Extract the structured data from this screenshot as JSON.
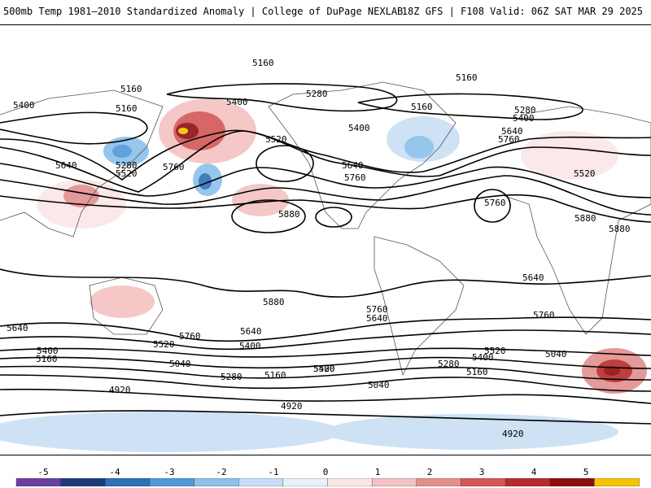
{
  "header": {
    "title_left": "500mb Temp 1981–2010 Standardized Anomaly | College of DuPage NEXLAB",
    "title_right": "18Z GFS | F108 Valid: 06Z SAT MAR 29 2025"
  },
  "contour_labels": [
    "5160",
    "5160",
    "5160",
    "5400",
    "5400",
    "5160",
    "5280",
    "5400",
    "5160",
    "5280",
    "5640",
    "5520",
    "5280",
    "5760",
    "5520",
    "5400",
    "5640",
    "5640",
    "5760",
    "5520",
    "5760",
    "5880",
    "5880",
    "5760",
    "5880",
    "5880",
    "5640",
    "5760",
    "5760",
    "5640",
    "5400",
    "5160",
    "5520",
    "5640",
    "5040",
    "5400",
    "5640",
    "5400",
    "5520",
    "5280",
    "5160",
    "5400",
    "5280",
    "5520",
    "5160",
    "4920",
    "5040",
    "4920",
    "4920",
    "5040",
    "5760"
  ],
  "colorbar": {
    "ticks": [
      "-5",
      "-4",
      "-3",
      "-2",
      "-1",
      "0",
      "1",
      "2",
      "3",
      "4",
      "5"
    ],
    "colors": {
      "neg": [
        "#6a3fa0",
        "#1f3a78",
        "#2f6fb5",
        "#4f9ad6",
        "#8cc0ea",
        "#c9def4",
        "#e8f1fa"
      ],
      "pos": [
        "#fbe6e6",
        "#f4c2c2",
        "#e48f8f",
        "#d35757",
        "#b82b2b",
        "#8e0f0f",
        "#f5c400"
      ]
    }
  }
}
